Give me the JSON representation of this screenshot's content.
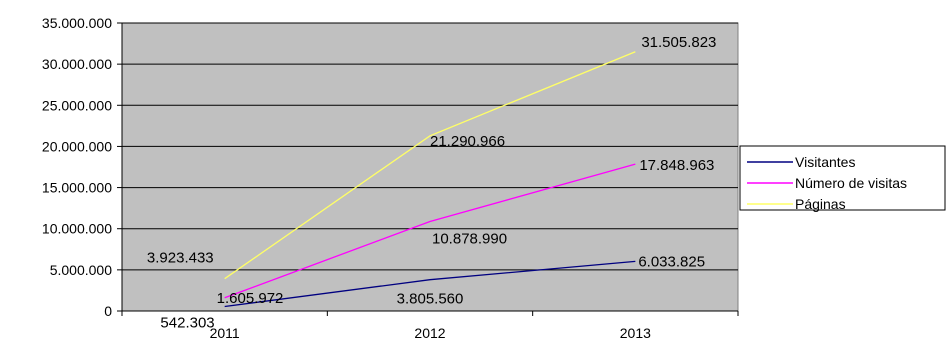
{
  "chart_data": {
    "type": "line",
    "categories": [
      "2011",
      "2012",
      "2013"
    ],
    "ylim": [
      0,
      35000000
    ],
    "yticks": [
      0,
      5000000,
      10000000,
      15000000,
      20000000,
      25000000,
      30000000,
      35000000
    ],
    "ytick_labels": [
      "0",
      "5.000.000",
      "10.000.000",
      "15.000.000",
      "20.000.000",
      "25.000.000",
      "30.000.000",
      "35.000.000"
    ],
    "grid": true,
    "plot_background": "#c0c0c0",
    "legend_position": "right",
    "series": [
      {
        "name": "Visitantes",
        "color": "#000080",
        "values": [
          542303,
          3805560,
          6033825
        ],
        "labels": [
          "542.303",
          "3.805.560",
          "6.033.825"
        ]
      },
      {
        "name": "Número de visitas",
        "color": "#ff00ff",
        "values": [
          1605972,
          10878990,
          17848963
        ],
        "labels": [
          "1.605.972",
          "10.878.990",
          "17.848.963"
        ]
      },
      {
        "name": "Páginas",
        "color": "#ffff66",
        "values": [
          3923433,
          21290966,
          31505823
        ],
        "labels": [
          "3.923.433",
          "21.290.966",
          "31.505.823"
        ]
      }
    ]
  }
}
